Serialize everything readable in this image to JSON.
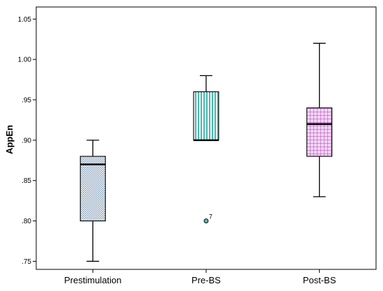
{
  "chart_data": {
    "type": "boxplot",
    "ylabel": "AppEn",
    "ylim": [
      0.74,
      1.065
    ],
    "y_ticks": [
      0.75,
      0.8,
      0.85,
      0.9,
      0.95,
      1.0,
      1.05
    ],
    "y_tick_labels": [
      ".75",
      ".80",
      ".85",
      ".90",
      ".95",
      "1.00",
      "1.05"
    ],
    "grid": false,
    "legend": "none",
    "categories": [
      "Prestimulation",
      "Pre-BS",
      "Post-BS"
    ],
    "boxes": [
      {
        "category": "Prestimulation",
        "min": 0.75,
        "q1": 0.8,
        "median": 0.87,
        "q3": 0.88,
        "max": 0.9,
        "fill_color": "#dfe8f0",
        "pattern": "fine-crosshatch",
        "outliers": []
      },
      {
        "category": "Pre-BS",
        "min": 0.9,
        "q1": 0.9,
        "median": 0.9,
        "q3": 0.96,
        "max": 0.98,
        "fill_color": "#4db8b0",
        "pattern": "vertical-stripes",
        "outliers": [
          {
            "value": 0.8,
            "label": "7"
          }
        ]
      },
      {
        "category": "Post-BS",
        "min": 0.83,
        "q1": 0.88,
        "median": 0.92,
        "q3": 0.94,
        "max": 1.02,
        "fill_color": "#d36ad8",
        "pattern": "grid",
        "outliers": []
      }
    ]
  }
}
